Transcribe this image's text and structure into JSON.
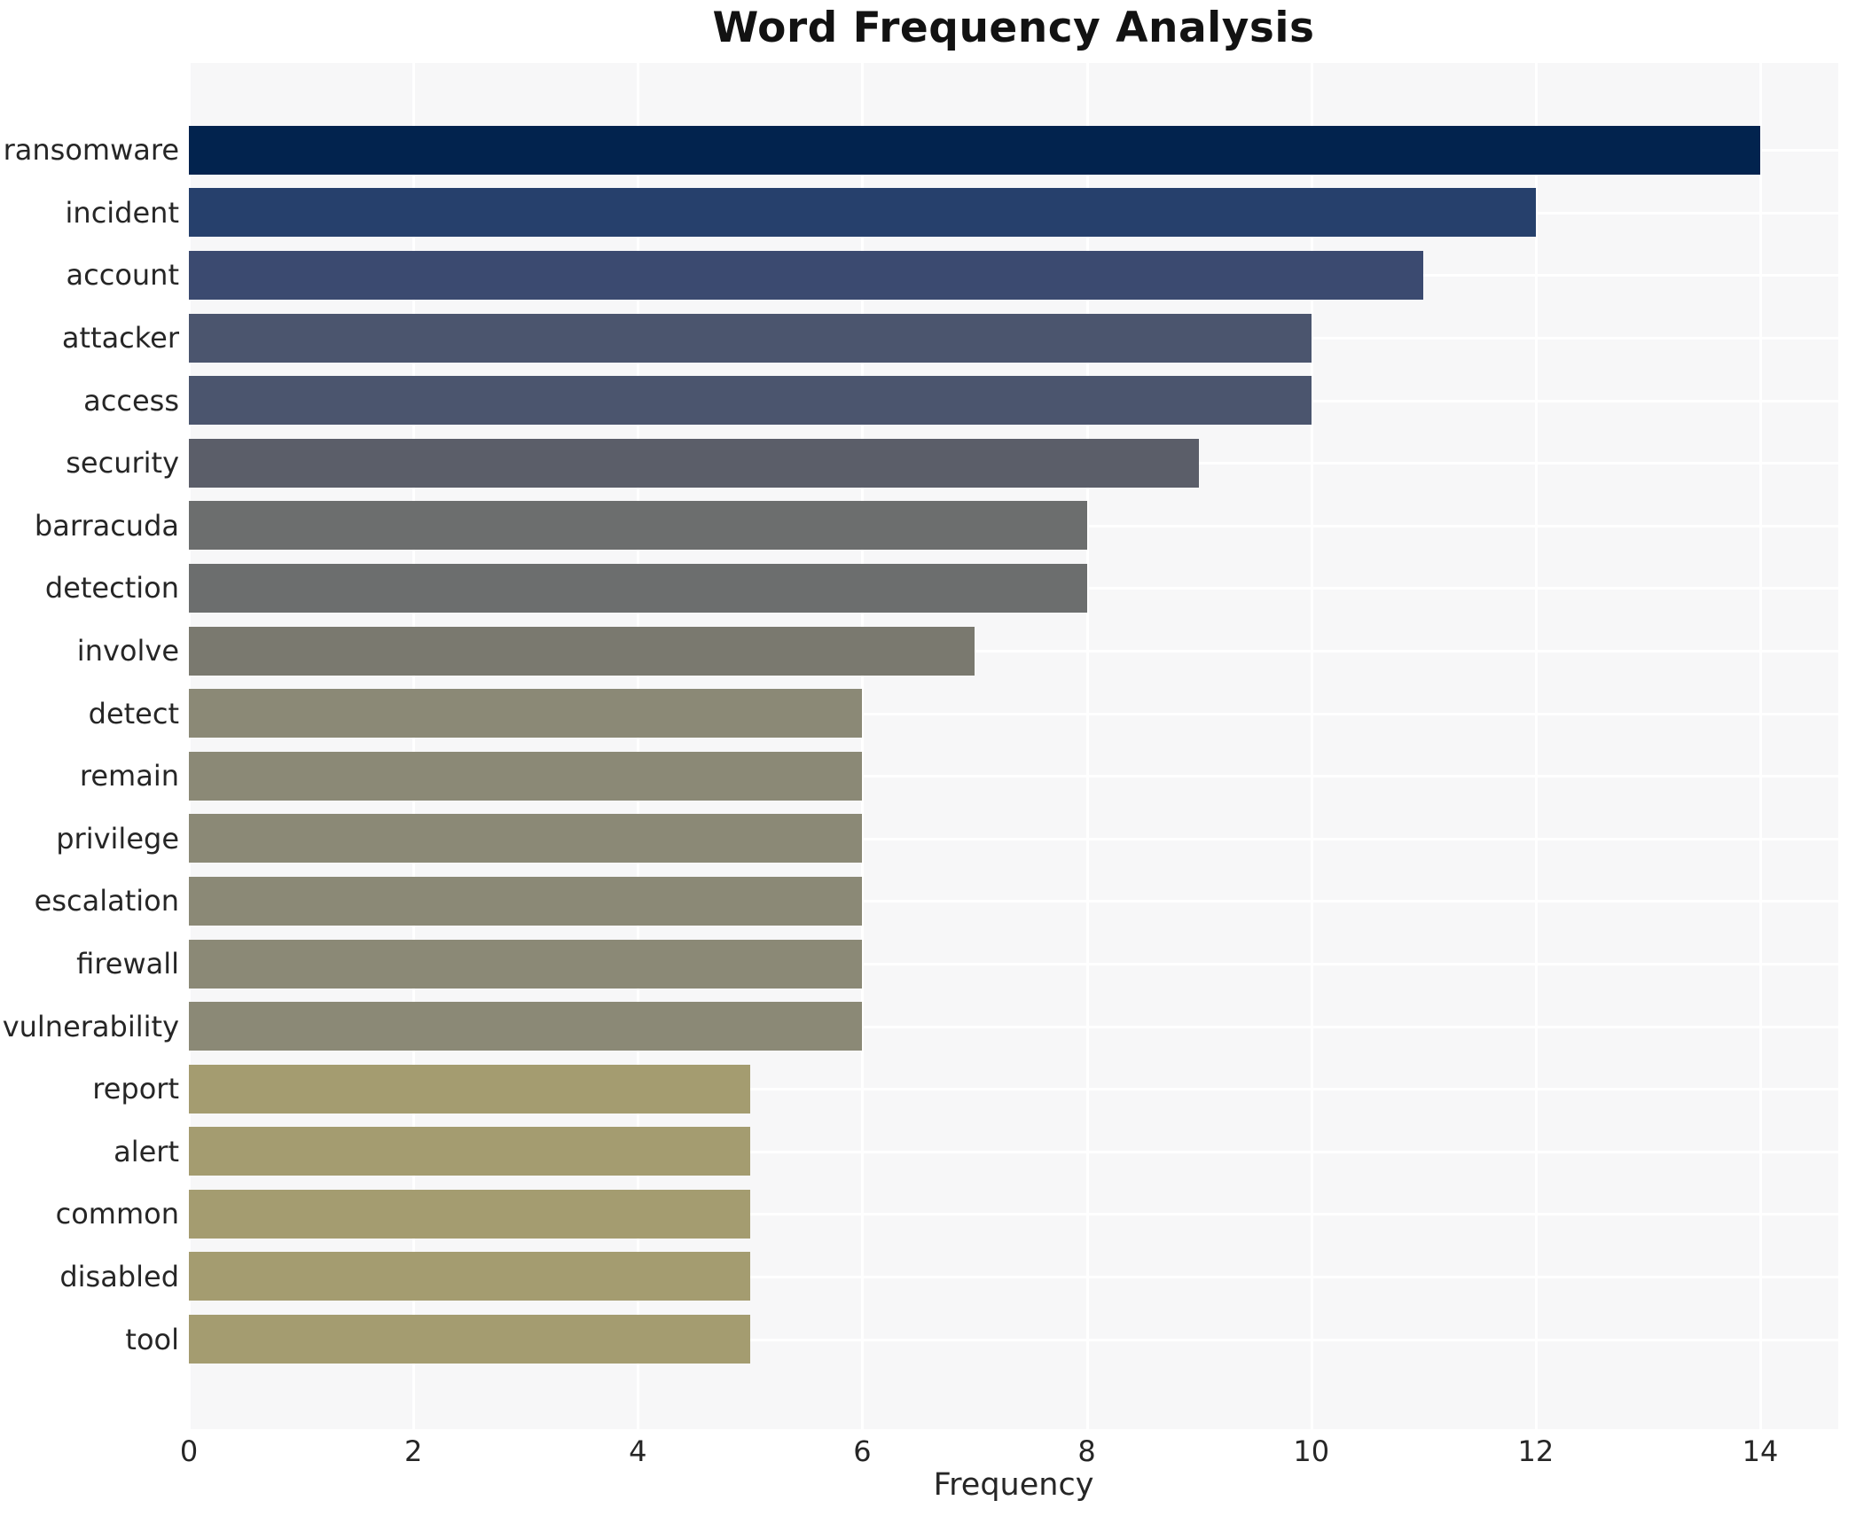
{
  "chart_data": {
    "type": "bar",
    "orientation": "horizontal",
    "title": "Word Frequency Analysis",
    "xlabel": "Frequency",
    "ylabel": "",
    "categories": [
      "ransomware",
      "incident",
      "account",
      "attacker",
      "access",
      "security",
      "barracuda",
      "detection",
      "involve",
      "detect",
      "remain",
      "privilege",
      "escalation",
      "firewall",
      "vulnerability",
      "report",
      "alert",
      "common",
      "disabled",
      "tool"
    ],
    "values": [
      14,
      12,
      11,
      10,
      10,
      9,
      8,
      8,
      7,
      6,
      6,
      6,
      6,
      6,
      6,
      5,
      5,
      5,
      5,
      5
    ],
    "bar_colors": [
      "#02234e",
      "#26406c",
      "#3b4a70",
      "#4b556e",
      "#4b556e",
      "#5b5e69",
      "#6c6e6e",
      "#6c6e6e",
      "#7a796f",
      "#8b8976",
      "#8b8976",
      "#8b8976",
      "#8b8976",
      "#8b8976",
      "#8b8976",
      "#a49c70",
      "#a49c70",
      "#a49c70",
      "#a49c70",
      "#a49c70"
    ],
    "x_ticks": [
      0,
      2,
      4,
      6,
      8,
      10,
      12,
      14
    ],
    "xlim": [
      0,
      14.7
    ],
    "grid": true,
    "legend": "none",
    "plot_background": "#f7f7f8",
    "grid_color": "#ffffff"
  }
}
